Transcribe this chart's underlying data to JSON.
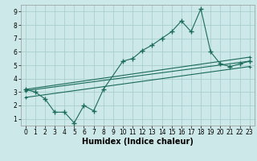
{
  "bg_color": "#cde8e8",
  "grid_color": "#aacece",
  "line_color": "#1a6b5a",
  "line1_x": [
    0,
    1,
    2,
    3,
    4,
    5,
    6,
    7,
    8,
    10,
    11,
    12,
    13,
    14,
    15,
    16,
    17,
    18,
    19,
    20,
    21,
    22,
    23
  ],
  "line1_y": [
    3.2,
    3.0,
    2.5,
    1.5,
    1.5,
    0.7,
    2.0,
    1.6,
    3.2,
    5.3,
    5.5,
    6.1,
    6.5,
    7.0,
    7.5,
    8.3,
    7.5,
    9.2,
    6.0,
    5.1,
    4.9,
    5.1,
    5.3
  ],
  "line2_x": [
    0,
    23
  ],
  "line2_y": [
    3.1,
    5.3
  ],
  "line3_x": [
    0,
    23
  ],
  "line3_y": [
    2.6,
    4.9
  ],
  "line4_x": [
    0,
    23
  ],
  "line4_y": [
    3.2,
    5.6
  ],
  "xlabel": "Humidex (Indice chaleur)",
  "xlim": [
    0,
    23
  ],
  "ylim": [
    1,
    9
  ],
  "yticks": [
    1,
    2,
    3,
    4,
    5,
    6,
    7,
    8,
    9
  ],
  "xticks": [
    0,
    1,
    2,
    3,
    4,
    5,
    6,
    7,
    8,
    9,
    10,
    11,
    12,
    13,
    14,
    15,
    16,
    17,
    18,
    19,
    20,
    21,
    22,
    23
  ],
  "tick_fontsize": 5.5,
  "xlabel_fontsize": 7
}
